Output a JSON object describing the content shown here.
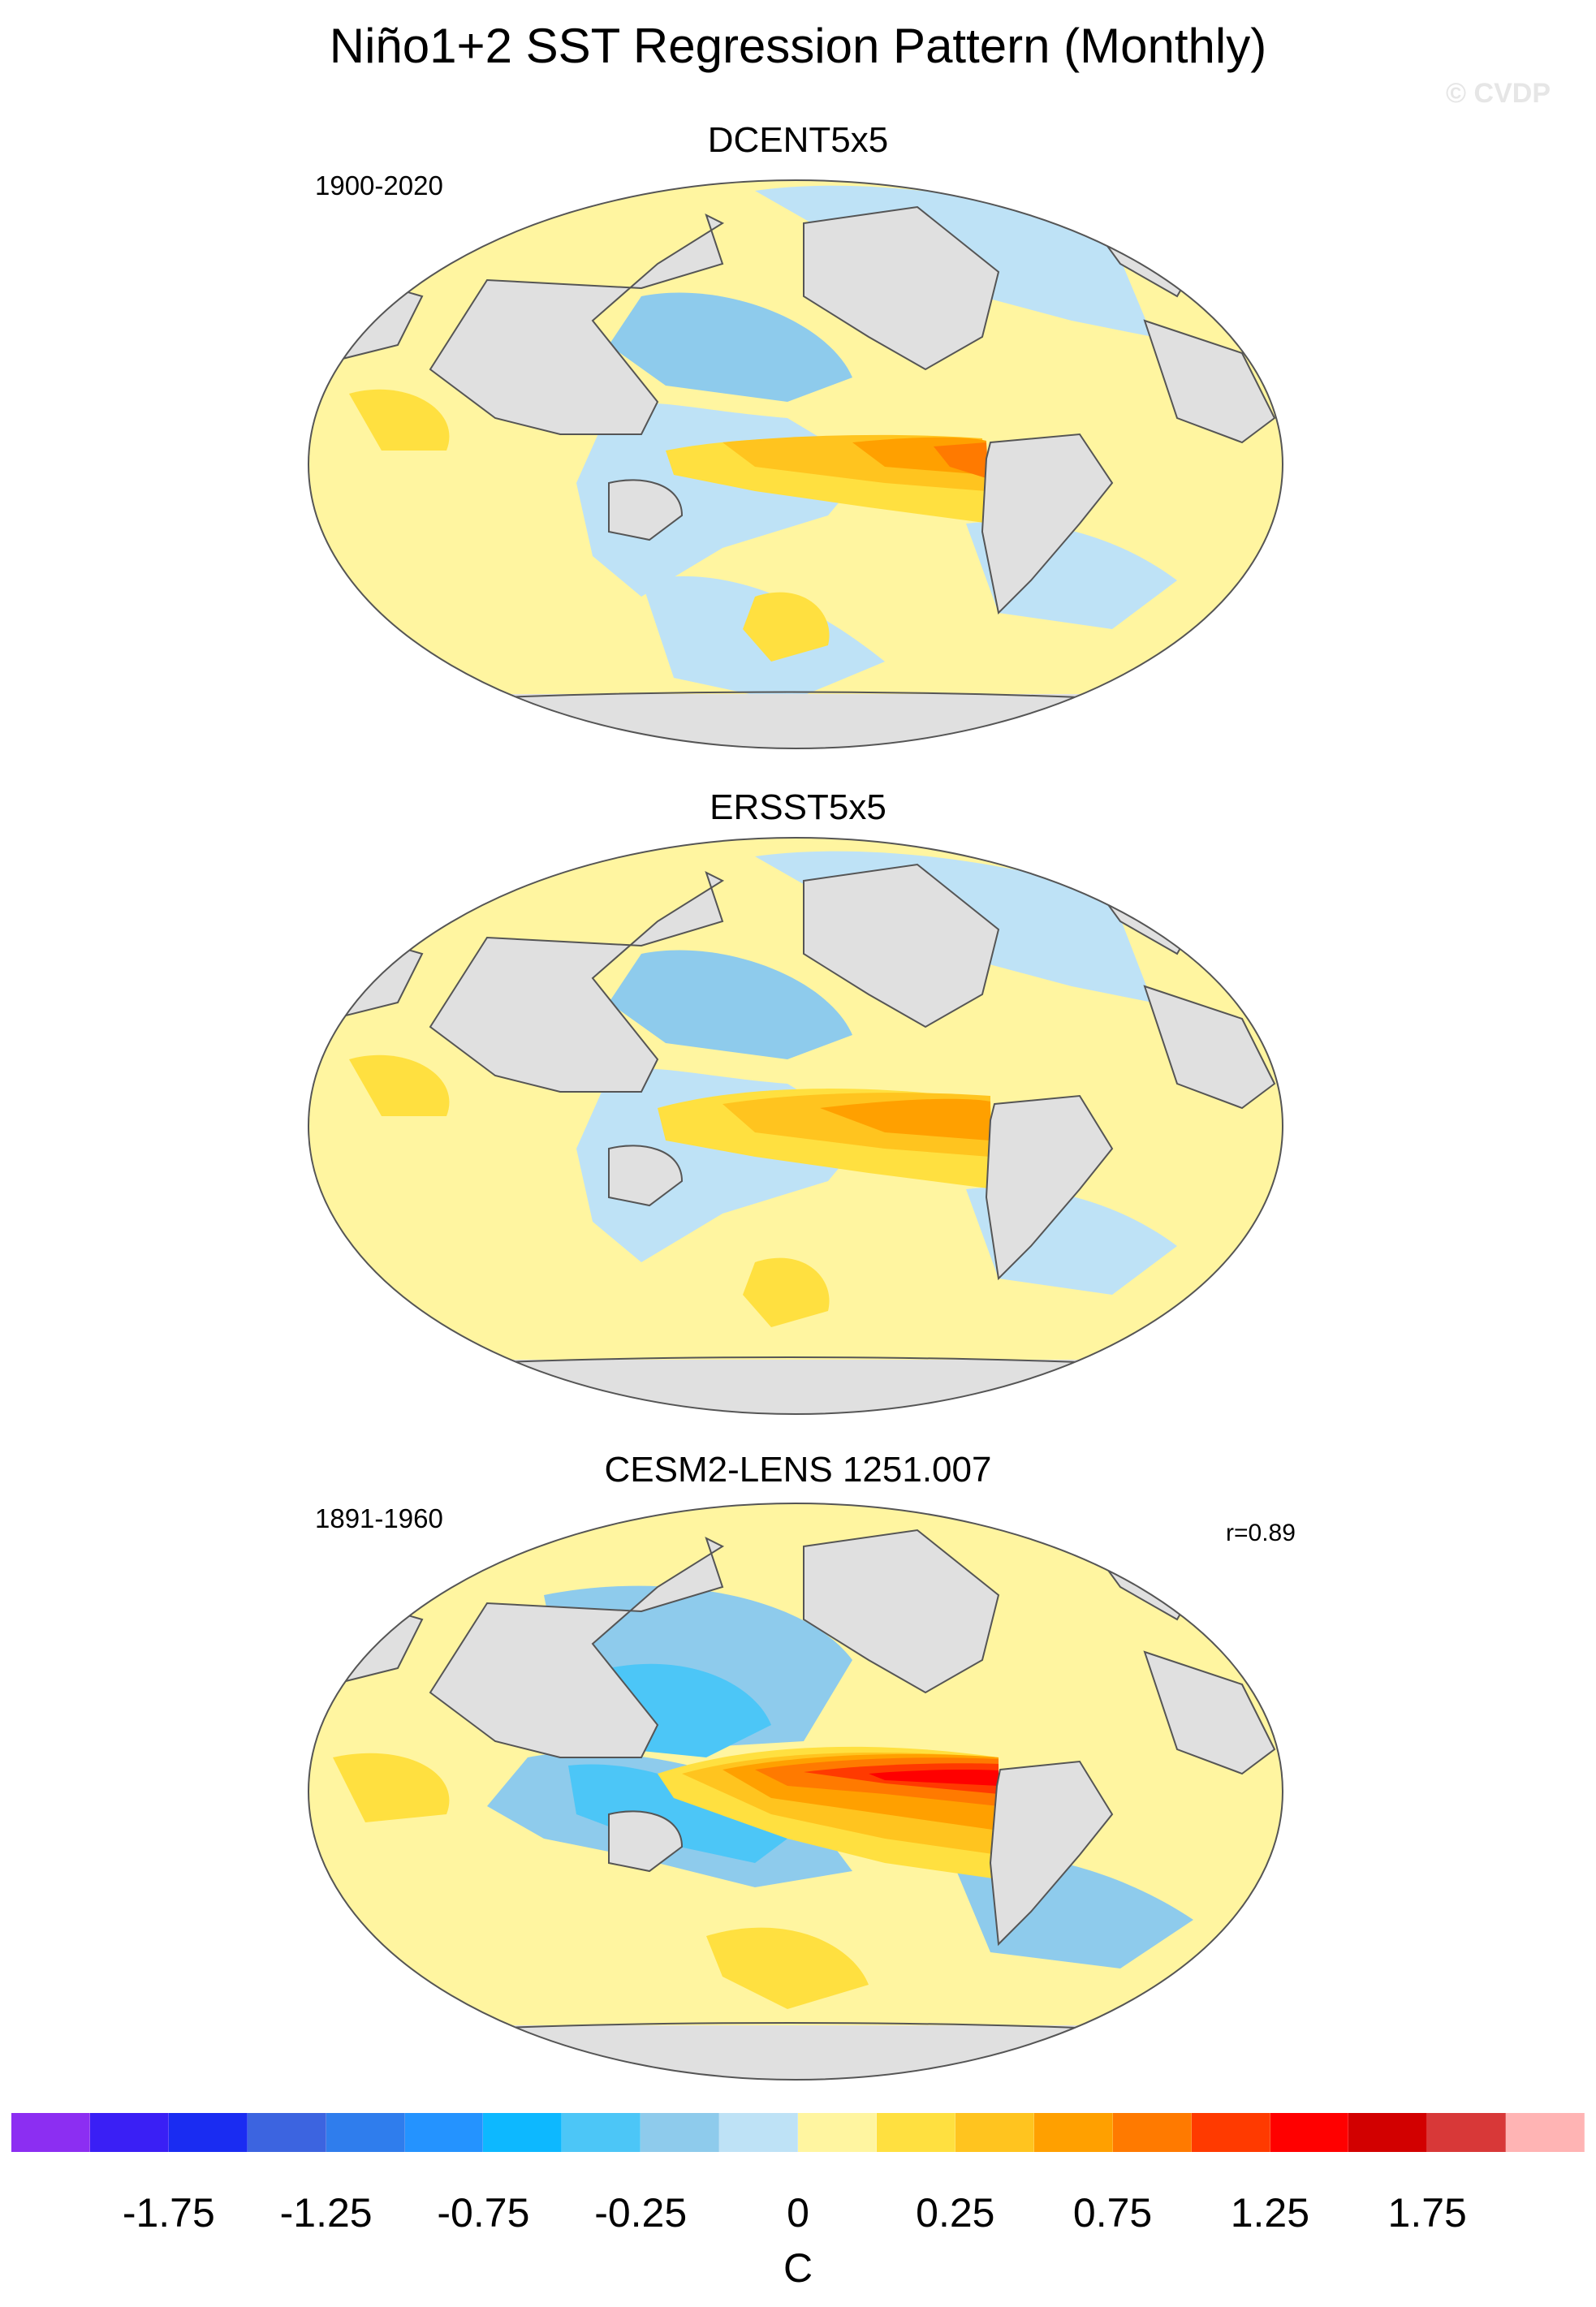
{
  "title": "Niño1+2 SST Regression Pattern (Monthly)",
  "watermark": "© CVDP",
  "panels": [
    {
      "name": "DCENT5x5",
      "period": "1900-2020",
      "corr": ""
    },
    {
      "name": "ERSST5x5",
      "period": "",
      "corr": ""
    },
    {
      "name": "CESM2-LENS 1251.007",
      "period": "1891-1960",
      "corr": "r=0.89"
    }
  ],
  "colorbar": {
    "colors": [
      "#8c2ef2",
      "#3a1ff5",
      "#1a2cf2",
      "#3c64e0",
      "#2f7ded",
      "#2493ff",
      "#0db8ff",
      "#4cc6f7",
      "#8ecbec",
      "#bee2f6",
      "#fff5a0",
      "#ffe040",
      "#ffc41f",
      "#ffa000",
      "#ff7a00",
      "#ff3a00",
      "#ff0000",
      "#d20000",
      "#d83838",
      "#ffb4b4"
    ],
    "tick_labels": [
      "-1.75",
      "-1.25",
      "-0.75",
      "-0.25",
      "0",
      "0.25",
      "0.75",
      "1.25",
      "1.75"
    ],
    "unit": "C"
  },
  "map_colors": {
    "land": "#e0e0e0",
    "outline": "#555555",
    "weak_pos": "#fff5a0",
    "mod_pos": "#ffe040",
    "pos3": "#ffc41f",
    "pos4": "#ffa000",
    "pos5": "#ff7a00",
    "pos6": "#ff3a00",
    "pos7": "#ff0000",
    "weak_neg": "#bee2f6",
    "mod_neg": "#8ecbec",
    "neg3": "#4cc6f7",
    "neg4": "#2493ff"
  }
}
